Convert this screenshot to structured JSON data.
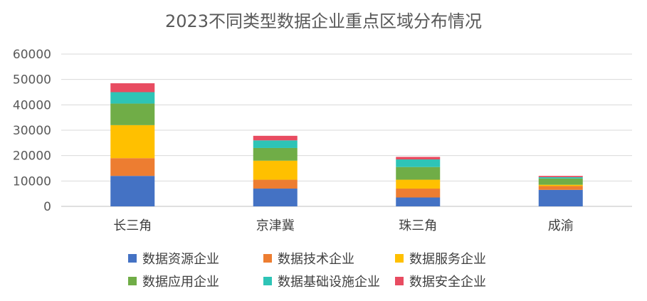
{
  "chart_data": {
    "type": "bar",
    "stacked": true,
    "title": "2023不同类型数据企业重点区域分布情况",
    "categories": [
      "长三角",
      "京津冀",
      "珠三角",
      "成渝"
    ],
    "ylim": [
      0,
      60000
    ],
    "yticks": [
      0,
      10000,
      20000,
      30000,
      40000,
      50000,
      60000
    ],
    "grid": true,
    "legend_position": "bottom",
    "series": [
      {
        "name": "数据资源企业",
        "color": "#4472C4",
        "values": [
          12000,
          7000,
          3500,
          6500
        ]
      },
      {
        "name": "数据技术企业",
        "color": "#ED7D31",
        "values": [
          7000,
          3500,
          3500,
          1500
        ]
      },
      {
        "name": "数据服务企业",
        "color": "#FFC000",
        "values": [
          13000,
          7500,
          3500,
          500
        ]
      },
      {
        "name": "数据应用企业",
        "color": "#70AD47",
        "values": [
          8500,
          5000,
          5000,
          2500
        ]
      },
      {
        "name": "数据基础设施企业",
        "color": "#2EC4B6",
        "values": [
          4500,
          3000,
          3000,
          500
        ]
      },
      {
        "name": "数据安全企业",
        "color": "#E84C61",
        "values": [
          3500,
          1800,
          1000,
          500
        ]
      }
    ]
  }
}
